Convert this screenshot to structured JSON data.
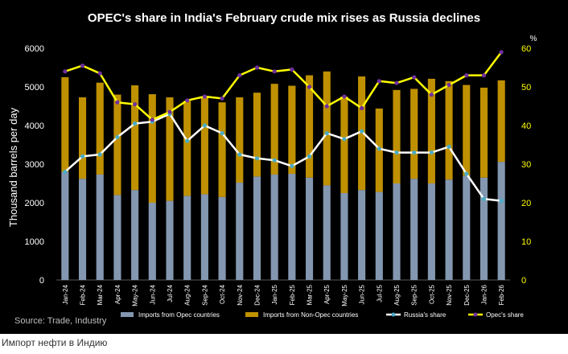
{
  "caption": "Импорт нефти в Индию",
  "chart_data": {
    "type": "bar",
    "title": "OPEC's share in India's February crude mix rises as Russia declines",
    "ylabel": "Thousand barrels per day",
    "y2label": "%",
    "source": "Source: Trade, Industry",
    "ylim": [
      0,
      6000
    ],
    "y2lim": [
      0,
      60
    ],
    "yticks": [
      "0",
      "1000",
      "2000",
      "3000",
      "4000",
      "5000",
      "6000"
    ],
    "y2ticks": [
      "0",
      "10",
      "20",
      "30",
      "40",
      "50",
      "60"
    ],
    "grid": false,
    "legend_position": "bottom",
    "categories": [
      "Jan-24",
      "Feb-24",
      "Mar-24",
      "Apr-24",
      "May-24",
      "Jun-24",
      "Jul-24",
      "Aug-24",
      "Sep-24",
      "Oct-24",
      "Nov-24",
      "Dec-24",
      "Jan-25",
      "Feb-25",
      "Mar-25",
      "Apr-25",
      "May-25",
      "Jun-25",
      "Jul-25",
      "Aug-25",
      "Sep-25",
      "Oct-25",
      "Nov-25",
      "Dec-25",
      "Jan-26",
      "Feb-26"
    ],
    "series": [
      {
        "name": "Imports from Opec countries",
        "kind": "stacked-bar",
        "color": "#8497b0",
        "values": [
          2800,
          2620,
          2730,
          2200,
          2330,
          2000,
          2050,
          2180,
          2220,
          2150,
          2520,
          2680,
          2730,
          2750,
          2650,
          2450,
          2250,
          2330,
          2280,
          2500,
          2620,
          2500,
          2600,
          2700,
          2650,
          3060
        ]
      },
      {
        "name": "Imports from Non-Opec countries",
        "kind": "stacked-bar",
        "color": "#bf9000",
        "values": [
          2450,
          2110,
          2380,
          2600,
          2710,
          2810,
          2680,
          2460,
          2520,
          2450,
          2210,
          2170,
          2350,
          2280,
          2650,
          2950,
          2500,
          2940,
          2160,
          2420,
          2330,
          2710,
          2550,
          2350,
          2330,
          2110
        ]
      },
      {
        "name": "Russia's share",
        "kind": "line",
        "axis": "y2",
        "color": "#ffffff",
        "marker": "#4bacc6",
        "values": [
          28,
          32,
          32.5,
          37,
          40.5,
          41,
          43,
          36,
          40,
          38,
          32.5,
          31.5,
          31,
          29.5,
          32,
          38,
          36.5,
          38.5,
          34,
          33,
          33,
          33,
          34.5,
          27.5,
          21,
          20.5
        ]
      },
      {
        "name": "Opec's share",
        "kind": "line",
        "axis": "y2",
        "color": "#ffff00",
        "marker": "#7030a0",
        "values": [
          54,
          55.5,
          53.5,
          46,
          45.5,
          41.5,
          43.5,
          46.5,
          47.5,
          47,
          53,
          55,
          54,
          54.5,
          50,
          45,
          47.5,
          44.5,
          51.5,
          51,
          52.5,
          48,
          50.5,
          53,
          53,
          59
        ]
      }
    ]
  }
}
